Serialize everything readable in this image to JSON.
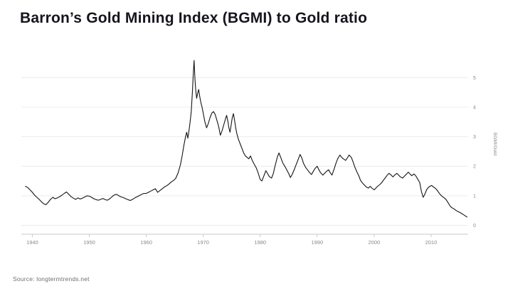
{
  "page": {
    "title": "Barron’s Gold Mining Index (BGMI) to Gold ratio",
    "source": "Source: longtermtrends.net"
  },
  "colors": {
    "title": "#15151f",
    "line": "#141414",
    "grid": "#ececec",
    "axis": "#c9c9c9",
    "tick_text": "#8a8a8a",
    "source_text": "#6f6f6f"
  },
  "chart_data": {
    "type": "line",
    "title": "Barron’s Gold Mining Index (BGMI) to Gold ratio",
    "xlabel": "",
    "ylabel": "BGMI/Gold",
    "x_ticks": [
      1940,
      1950,
      1960,
      1970,
      1980,
      1990,
      2000,
      2010
    ],
    "y_ticks": [
      0,
      1,
      2,
      3,
      4,
      5
    ],
    "x_range": [
      1938.7,
      2016.5
    ],
    "y_range": [
      -0.3,
      5.8
    ],
    "grid": true,
    "legend_position": "none",
    "series": [
      {
        "name": "BGMI/Gold",
        "points": [
          [
            1938.8,
            1.32
          ],
          [
            1939.2,
            1.28
          ],
          [
            1939.6,
            1.2
          ],
          [
            1940,
            1.12
          ],
          [
            1940.4,
            1.02
          ],
          [
            1940.8,
            0.95
          ],
          [
            1941.2,
            0.88
          ],
          [
            1941.6,
            0.8
          ],
          [
            1942,
            0.73
          ],
          [
            1942.4,
            0.7
          ],
          [
            1942.8,
            0.78
          ],
          [
            1943.2,
            0.88
          ],
          [
            1943.6,
            0.95
          ],
          [
            1944,
            0.9
          ],
          [
            1944.4,
            0.93
          ],
          [
            1944.8,
            0.97
          ],
          [
            1945.2,
            1.02
          ],
          [
            1945.6,
            1.08
          ],
          [
            1946,
            1.13
          ],
          [
            1946.4,
            1.05
          ],
          [
            1946.8,
            0.97
          ],
          [
            1947.2,
            0.92
          ],
          [
            1947.6,
            0.88
          ],
          [
            1948,
            0.93
          ],
          [
            1948.4,
            0.89
          ],
          [
            1948.8,
            0.92
          ],
          [
            1949.2,
            0.96
          ],
          [
            1949.6,
            1.0
          ],
          [
            1950,
            0.99
          ],
          [
            1950.4,
            0.95
          ],
          [
            1950.8,
            0.9
          ],
          [
            1951.2,
            0.87
          ],
          [
            1951.6,
            0.85
          ],
          [
            1952,
            0.88
          ],
          [
            1952.4,
            0.91
          ],
          [
            1952.8,
            0.87
          ],
          [
            1953.2,
            0.85
          ],
          [
            1953.6,
            0.9
          ],
          [
            1954,
            0.97
          ],
          [
            1954.4,
            1.03
          ],
          [
            1954.8,
            1.05
          ],
          [
            1955.2,
            1.0
          ],
          [
            1955.6,
            0.96
          ],
          [
            1956,
            0.94
          ],
          [
            1956.4,
            0.9
          ],
          [
            1956.8,
            0.87
          ],
          [
            1957.2,
            0.84
          ],
          [
            1957.6,
            0.88
          ],
          [
            1958,
            0.93
          ],
          [
            1958.4,
            0.97
          ],
          [
            1958.8,
            1.01
          ],
          [
            1959.2,
            1.05
          ],
          [
            1959.6,
            1.08
          ],
          [
            1960,
            1.08
          ],
          [
            1960.4,
            1.12
          ],
          [
            1960.8,
            1.16
          ],
          [
            1961.2,
            1.2
          ],
          [
            1961.6,
            1.24
          ],
          [
            1962,
            1.12
          ],
          [
            1962.4,
            1.18
          ],
          [
            1962.8,
            1.24
          ],
          [
            1963.2,
            1.3
          ],
          [
            1963.6,
            1.34
          ],
          [
            1964,
            1.4
          ],
          [
            1964.4,
            1.47
          ],
          [
            1964.8,
            1.52
          ],
          [
            1965.2,
            1.6
          ],
          [
            1965.6,
            1.78
          ],
          [
            1966,
            2.05
          ],
          [
            1966.3,
            2.35
          ],
          [
            1966.6,
            2.7
          ],
          [
            1966.9,
            3.0
          ],
          [
            1967.1,
            3.15
          ],
          [
            1967.3,
            2.95
          ],
          [
            1967.5,
            3.2
          ],
          [
            1967.7,
            3.5
          ],
          [
            1967.9,
            3.85
          ],
          [
            1968.1,
            4.5
          ],
          [
            1968.25,
            5.1
          ],
          [
            1968.4,
            5.58
          ],
          [
            1968.55,
            4.95
          ],
          [
            1968.7,
            4.55
          ],
          [
            1968.85,
            4.3
          ],
          [
            1969,
            4.45
          ],
          [
            1969.2,
            4.6
          ],
          [
            1969.4,
            4.35
          ],
          [
            1969.6,
            4.15
          ],
          [
            1969.8,
            4.0
          ],
          [
            1970,
            3.8
          ],
          [
            1970.3,
            3.5
          ],
          [
            1970.6,
            3.3
          ],
          [
            1970.9,
            3.45
          ],
          [
            1971.2,
            3.65
          ],
          [
            1971.5,
            3.8
          ],
          [
            1971.8,
            3.85
          ],
          [
            1972.1,
            3.75
          ],
          [
            1972.4,
            3.55
          ],
          [
            1972.7,
            3.35
          ],
          [
            1973,
            3.05
          ],
          [
            1973.3,
            3.2
          ],
          [
            1973.6,
            3.4
          ],
          [
            1973.9,
            3.6
          ],
          [
            1974.1,
            3.72
          ],
          [
            1974.3,
            3.55
          ],
          [
            1974.5,
            3.3
          ],
          [
            1974.7,
            3.15
          ],
          [
            1974.9,
            3.4
          ],
          [
            1975.1,
            3.65
          ],
          [
            1975.3,
            3.78
          ],
          [
            1975.5,
            3.55
          ],
          [
            1975.7,
            3.3
          ],
          [
            1975.9,
            3.1
          ],
          [
            1976.2,
            2.9
          ],
          [
            1976.5,
            2.75
          ],
          [
            1976.8,
            2.6
          ],
          [
            1977.1,
            2.45
          ],
          [
            1977.4,
            2.35
          ],
          [
            1977.7,
            2.3
          ],
          [
            1978,
            2.25
          ],
          [
            1978.3,
            2.35
          ],
          [
            1978.6,
            2.2
          ],
          [
            1979,
            2.05
          ],
          [
            1979.3,
            1.95
          ],
          [
            1979.6,
            1.8
          ],
          [
            1980,
            1.55
          ],
          [
            1980.3,
            1.5
          ],
          [
            1980.6,
            1.65
          ],
          [
            1981,
            1.85
          ],
          [
            1981.3,
            1.75
          ],
          [
            1981.6,
            1.65
          ],
          [
            1982,
            1.6
          ],
          [
            1982.3,
            1.75
          ],
          [
            1982.6,
            2.0
          ],
          [
            1983,
            2.3
          ],
          [
            1983.3,
            2.45
          ],
          [
            1983.6,
            2.3
          ],
          [
            1984,
            2.1
          ],
          [
            1984.3,
            2.0
          ],
          [
            1984.6,
            1.9
          ],
          [
            1985,
            1.75
          ],
          [
            1985.3,
            1.62
          ],
          [
            1985.6,
            1.72
          ],
          [
            1986,
            1.9
          ],
          [
            1986.3,
            2.05
          ],
          [
            1986.6,
            2.2
          ],
          [
            1987,
            2.4
          ],
          [
            1987.3,
            2.28
          ],
          [
            1987.6,
            2.1
          ],
          [
            1988,
            1.95
          ],
          [
            1988.3,
            1.88
          ],
          [
            1988.6,
            1.8
          ],
          [
            1989,
            1.72
          ],
          [
            1989.3,
            1.82
          ],
          [
            1989.6,
            1.92
          ],
          [
            1990,
            2.0
          ],
          [
            1990.3,
            1.88
          ],
          [
            1990.6,
            1.78
          ],
          [
            1991,
            1.7
          ],
          [
            1991.3,
            1.76
          ],
          [
            1991.6,
            1.82
          ],
          [
            1992,
            1.88
          ],
          [
            1992.3,
            1.78
          ],
          [
            1992.6,
            1.7
          ],
          [
            1993,
            1.92
          ],
          [
            1993.3,
            2.1
          ],
          [
            1993.6,
            2.25
          ],
          [
            1994,
            2.38
          ],
          [
            1994.3,
            2.3
          ],
          [
            1994.6,
            2.25
          ],
          [
            1995,
            2.2
          ],
          [
            1995.3,
            2.28
          ],
          [
            1995.6,
            2.38
          ],
          [
            1996,
            2.3
          ],
          [
            1996.3,
            2.15
          ],
          [
            1996.6,
            1.98
          ],
          [
            1997,
            1.8
          ],
          [
            1997.3,
            1.68
          ],
          [
            1997.6,
            1.52
          ],
          [
            1998,
            1.42
          ],
          [
            1998.3,
            1.36
          ],
          [
            1998.6,
            1.3
          ],
          [
            1999,
            1.26
          ],
          [
            1999.3,
            1.32
          ],
          [
            1999.6,
            1.26
          ],
          [
            2000,
            1.2
          ],
          [
            2000.3,
            1.26
          ],
          [
            2000.6,
            1.32
          ],
          [
            2001,
            1.38
          ],
          [
            2001.3,
            1.44
          ],
          [
            2001.6,
            1.52
          ],
          [
            2002,
            1.62
          ],
          [
            2002.3,
            1.7
          ],
          [
            2002.6,
            1.76
          ],
          [
            2003,
            1.7
          ],
          [
            2003.3,
            1.64
          ],
          [
            2003.6,
            1.7
          ],
          [
            2004,
            1.76
          ],
          [
            2004.3,
            1.7
          ],
          [
            2004.6,
            1.64
          ],
          [
            2005,
            1.6
          ],
          [
            2005.3,
            1.66
          ],
          [
            2005.6,
            1.72
          ],
          [
            2006,
            1.8
          ],
          [
            2006.3,
            1.74
          ],
          [
            2006.6,
            1.68
          ],
          [
            2007,
            1.74
          ],
          [
            2007.3,
            1.68
          ],
          [
            2007.6,
            1.58
          ],
          [
            2008,
            1.45
          ],
          [
            2008.3,
            1.15
          ],
          [
            2008.6,
            0.95
          ],
          [
            2008.9,
            1.05
          ],
          [
            2009.2,
            1.2
          ],
          [
            2009.5,
            1.28
          ],
          [
            2009.8,
            1.32
          ],
          [
            2010.1,
            1.35
          ],
          [
            2010.4,
            1.3
          ],
          [
            2010.7,
            1.26
          ],
          [
            2011,
            1.2
          ],
          [
            2011.3,
            1.12
          ],
          [
            2011.6,
            1.04
          ],
          [
            2012,
            0.97
          ],
          [
            2012.3,
            0.93
          ],
          [
            2012.6,
            0.88
          ],
          [
            2013,
            0.76
          ],
          [
            2013.3,
            0.66
          ],
          [
            2013.6,
            0.6
          ],
          [
            2014,
            0.56
          ],
          [
            2014.4,
            0.5
          ],
          [
            2014.8,
            0.46
          ],
          [
            2015.2,
            0.42
          ],
          [
            2015.6,
            0.37
          ],
          [
            2016,
            0.32
          ],
          [
            2016.3,
            0.28
          ]
        ]
      }
    ]
  }
}
